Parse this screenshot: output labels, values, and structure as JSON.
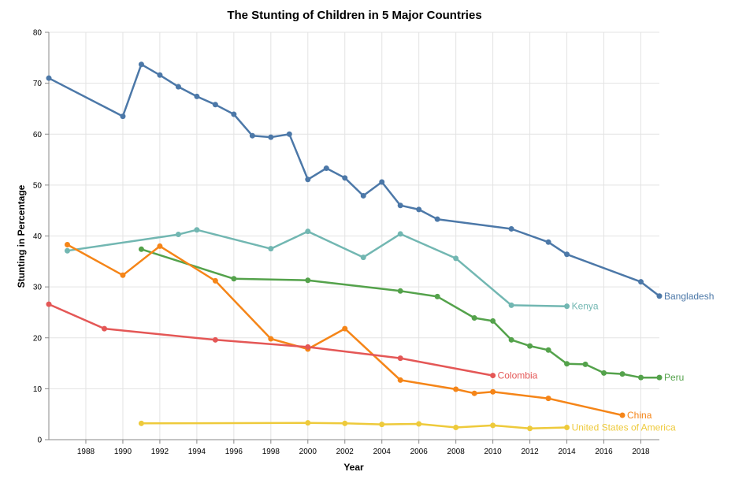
{
  "chart_data": {
    "type": "line",
    "title": "The Stunting of Children in 5 Major Countries",
    "xlabel": "Year",
    "ylabel": "Stunting in Percentage",
    "xlim": [
      1986,
      2019
    ],
    "ylim": [
      0,
      80
    ],
    "x_ticks": [
      "1988",
      "1990",
      "1992",
      "1994",
      "1996",
      "1998",
      "2000",
      "2002",
      "2004",
      "2006",
      "2008",
      "2010",
      "2012",
      "2014",
      "2016",
      "2018"
    ],
    "y_ticks": [
      "0",
      "10",
      "20",
      "30",
      "40",
      "50",
      "60",
      "70",
      "80"
    ],
    "grid": true,
    "legend": "labels at line ends",
    "series": [
      {
        "name": "Bangladesh",
        "color": "#4c78a8",
        "x": [
          1986,
          1990,
          1991,
          1992,
          1993,
          1994,
          1995,
          1996,
          1997,
          1998,
          1999,
          2000,
          2001,
          2002,
          2003,
          2004,
          2005,
          2006,
          2007,
          2011,
          2013,
          2014,
          2018,
          2019
        ],
        "values": [
          71.0,
          63.5,
          73.7,
          71.6,
          69.3,
          67.4,
          65.8,
          63.9,
          59.7,
          59.4,
          60.0,
          51.1,
          53.3,
          51.4,
          47.9,
          50.6,
          46.0,
          45.2,
          43.3,
          41.4,
          38.8,
          36.4,
          31.0,
          28.2
        ]
      },
      {
        "name": "Kenya",
        "color": "#72b7b2",
        "x": [
          1987,
          1993,
          1994,
          1998,
          2000,
          2003,
          2005,
          2008,
          2011,
          2014
        ],
        "values": [
          37.1,
          40.3,
          41.2,
          37.5,
          40.9,
          35.8,
          40.4,
          35.6,
          26.4,
          26.2
        ]
      },
      {
        "name": "Peru",
        "color": "#54a24b",
        "x": [
          1991,
          1996,
          2000,
          2005,
          2007,
          2009,
          2010,
          2011,
          2012,
          2013,
          2014,
          2015,
          2016,
          2017,
          2018,
          2019
        ],
        "values": [
          37.4,
          31.6,
          31.3,
          29.2,
          28.1,
          23.9,
          23.3,
          19.6,
          18.4,
          17.6,
          14.9,
          14.8,
          13.1,
          12.9,
          12.2,
          12.2
        ]
      },
      {
        "name": "China",
        "color": "#f58518",
        "x": [
          1987,
          1990,
          1992,
          1995,
          1998,
          2000,
          2002,
          2005,
          2008,
          2009,
          2010,
          2013,
          2017
        ],
        "values": [
          38.3,
          32.3,
          38.0,
          31.2,
          19.8,
          17.8,
          21.8,
          11.7,
          9.9,
          9.1,
          9.4,
          8.1,
          4.8
        ]
      },
      {
        "name": "Colombia",
        "color": "#e45756",
        "x": [
          1986,
          1989,
          1995,
          2000,
          2005,
          2010
        ],
        "values": [
          26.6,
          21.8,
          19.6,
          18.2,
          16.0,
          12.6
        ]
      },
      {
        "name": "United States of America",
        "color": "#eeca3b",
        "x": [
          1991,
          2000,
          2002,
          2004,
          2006,
          2008,
          2010,
          2012,
          2014
        ],
        "values": [
          3.2,
          3.3,
          3.2,
          3.0,
          3.1,
          2.4,
          2.8,
          2.2,
          2.4
        ]
      }
    ]
  }
}
